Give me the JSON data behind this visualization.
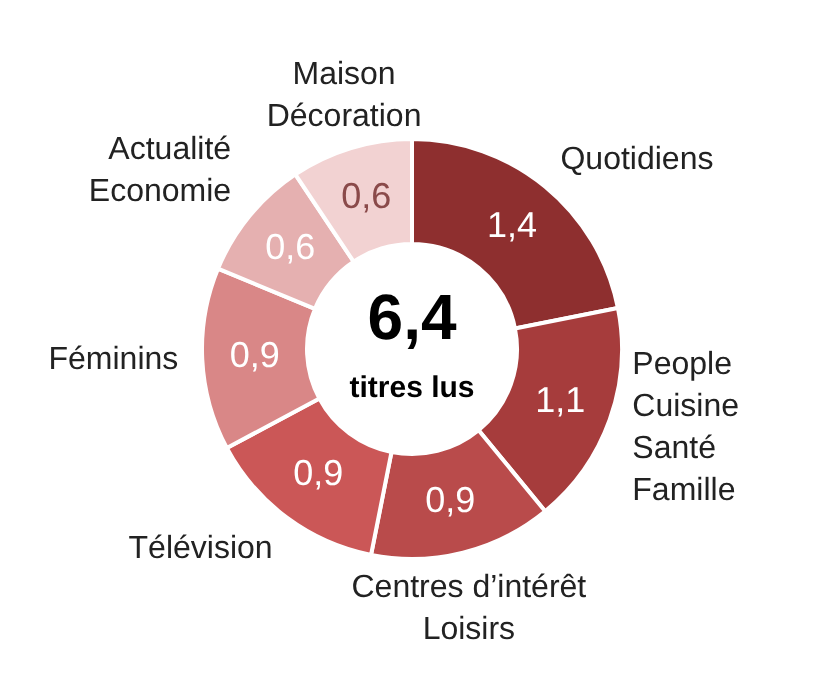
{
  "chart_data": {
    "type": "donut",
    "categories": [
      "Quotidiens",
      "People\nCuisine\nSanté\nFamille",
      "Centres d’intérêt\nLoisirs",
      "Télévision",
      "Féminins",
      "Actualité\nEconomie",
      "Maison\nDécoration"
    ],
    "values": [
      1.4,
      1.1,
      0.9,
      0.9,
      0.9,
      0.6,
      0.6
    ],
    "value_labels": [
      "1,4",
      "1,1",
      "0,9",
      "0,9",
      "0,9",
      "0,6",
      "0,6"
    ],
    "colors": [
      "#8e2f2f",
      "#a63c3c",
      "#b94b4b",
      "#cb5757",
      "#d98787",
      "#e5b0b0",
      "#f2d2d2"
    ],
    "annotations": [
      "6,4",
      "titres lus"
    ],
    "legend": false
  }
}
